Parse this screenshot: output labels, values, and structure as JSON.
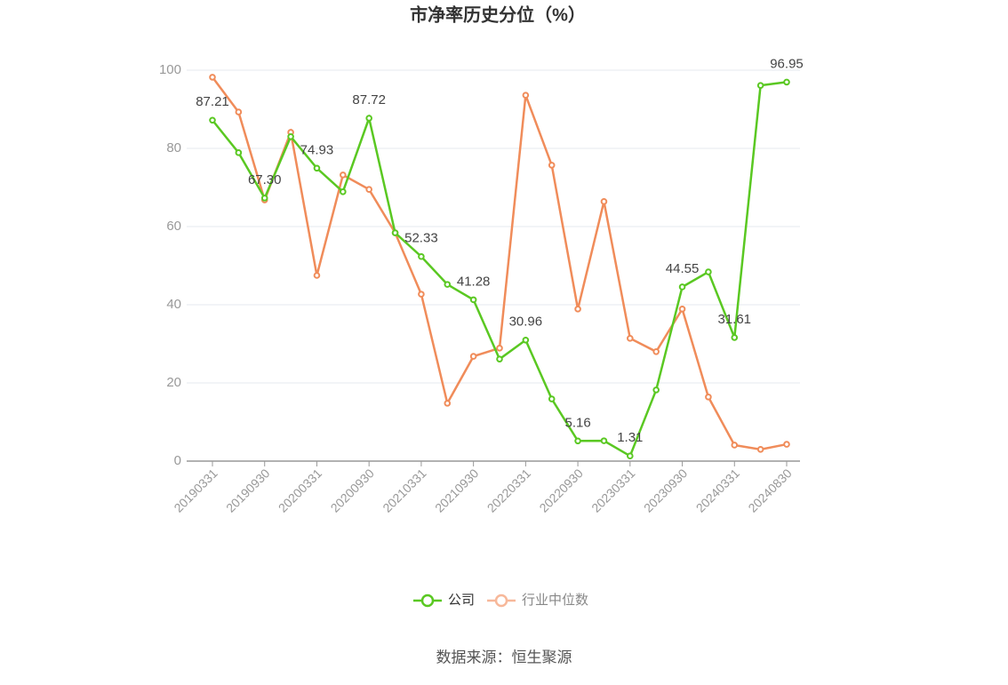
{
  "chart_data": {
    "type": "line",
    "title": "市净率历史分位（%）",
    "source": "数据来源：恒生聚源",
    "categories": [
      "20190331",
      null,
      "20190930",
      null,
      "20200331",
      null,
      "20200930",
      null,
      "20210331",
      null,
      "20210930",
      null,
      "20220331",
      null,
      "20220930",
      null,
      "20230331",
      null,
      "20230930",
      null,
      "20240331",
      null,
      "20240830"
    ],
    "ylim": [
      0,
      100
    ],
    "yticks": [
      0,
      20,
      40,
      60,
      80,
      100
    ],
    "grid": true,
    "legend": "bottom",
    "series": [
      {
        "name": "公司",
        "color": "#5ac822",
        "values": [
          87.21,
          78.9,
          67.3,
          83.0,
          74.93,
          68.9,
          87.72,
          58.4,
          52.33,
          45.2,
          41.28,
          26.1,
          30.96,
          15.9,
          5.16,
          5.2,
          1.31,
          18.2,
          44.55,
          48.4,
          31.61,
          96.1,
          96.95
        ],
        "value_labels": [
          "87.21",
          null,
          "67.30",
          null,
          "74.93",
          null,
          "87.72",
          null,
          "52.33",
          null,
          "41.28",
          null,
          "30.96",
          null,
          "5.16",
          null,
          "1.31",
          null,
          "44.55",
          null,
          "31.61",
          null,
          "96.95"
        ]
      },
      {
        "name": "行业中位数",
        "color": "#f08c5a",
        "values": [
          98.2,
          89.3,
          66.8,
          84.1,
          47.5,
          73.2,
          69.5,
          58.4,
          42.7,
          14.8,
          26.8,
          28.9,
          93.6,
          75.7,
          38.9,
          66.4,
          31.4,
          28.0,
          38.9,
          16.4,
          4.1,
          3.0,
          4.3
        ]
      }
    ]
  }
}
